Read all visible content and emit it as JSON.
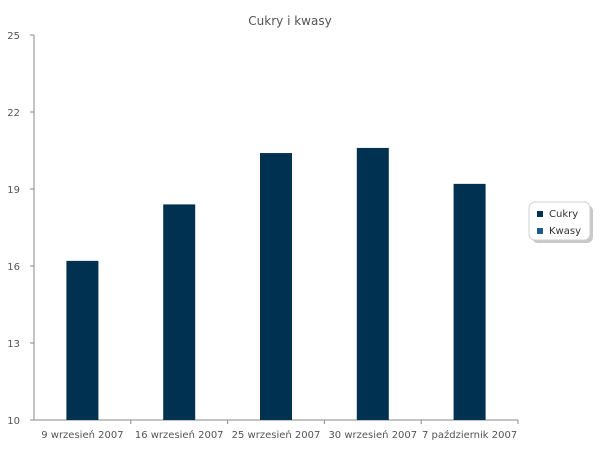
{
  "chart_data": {
    "type": "bar",
    "title": "Cukry  i  kwasy",
    "categories": [
      "9 wrzesień 2007",
      "16 wrzesień 2007",
      "25 wrzesień 2007",
      "30 wrzesień 2007",
      "7 październik 2007"
    ],
    "series": [
      {
        "name": "Cukry",
        "values": [
          16.2,
          18.4,
          20.4,
          20.6,
          19.2
        ],
        "color": "#003150"
      },
      {
        "name": "Kwasy",
        "values": [
          null,
          null,
          null,
          null,
          null
        ],
        "color": "#1a5b8c"
      }
    ],
    "ylim": [
      10,
      25
    ],
    "yticks": [
      10,
      13,
      16,
      19,
      22,
      25
    ],
    "grid": false,
    "legend_position": "right"
  }
}
